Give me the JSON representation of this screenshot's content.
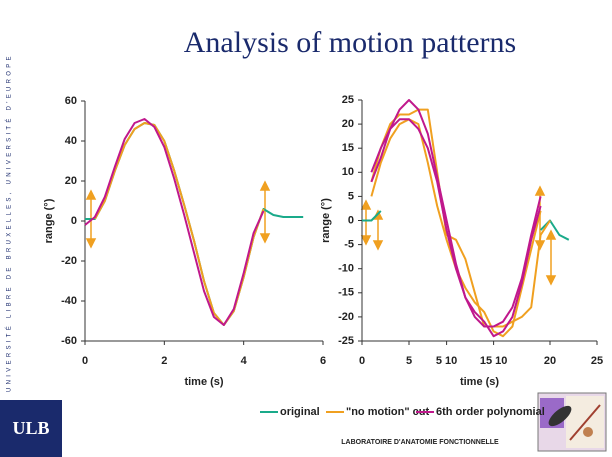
{
  "slide": {
    "title": "Analysis of motion patterns",
    "sidebar": "UNIVERSITÉ LIBRE DE BRUXELLES, UNIVERSITÉ D'EUROPE",
    "logo": "ULB",
    "lab": "LABORATOIRE D'ANATOMIE FONCTIONNELLE"
  },
  "chart_data": [
    {
      "type": "line",
      "xlabel": "time (s)",
      "ylabel": "range (°)",
      "xlim": [
        0,
        6
      ],
      "ylim": [
        -60,
        60
      ],
      "xticks": [
        0,
        2,
        4,
        6
      ],
      "yticks": [
        -60,
        -40,
        -20,
        0,
        20,
        40,
        60
      ],
      "x": [
        0,
        0.25,
        0.5,
        0.75,
        1,
        1.25,
        1.5,
        1.75,
        2,
        2.25,
        2.5,
        2.75,
        3,
        3.25,
        3.5,
        3.75,
        4,
        4.25,
        4.5,
        4.75,
        5,
        5.25,
        5.5
      ],
      "series": [
        {
          "name": "original",
          "color": "#1aaa8a",
          "values": [
            1,
            1,
            10,
            25,
            38,
            46,
            49,
            48,
            40,
            25,
            8,
            -10,
            -30,
            -46,
            -52,
            -45,
            -28,
            -8,
            6,
            3,
            2,
            2,
            2
          ]
        },
        {
          "name": "\"no motion\" cut",
          "color": "#f0a020",
          "values": [
            null,
            1,
            10,
            25,
            38,
            46,
            49,
            48,
            40,
            25,
            8,
            -10,
            -30,
            -46,
            -52,
            -45,
            -28,
            -8,
            6,
            null,
            null,
            null,
            null
          ]
        },
        {
          "name": "6th order polynomial",
          "color": "#c0188c",
          "values": [
            -2,
            2,
            12,
            27,
            41,
            49,
            51,
            47,
            37,
            21,
            3,
            -16,
            -35,
            -48,
            -52,
            -44,
            -26,
            -6,
            5,
            null,
            null,
            null,
            null
          ]
        }
      ]
    },
    {
      "type": "line",
      "xlabel": "time (s)",
      "ylabel": "range (°)",
      "xlim": [
        0,
        25
      ],
      "ylim": [
        -25,
        25
      ],
      "xticks": [
        0,
        {
          "value": 5,
          "label": "5"
        },
        {
          "value": 9,
          "label": "5 10"
        },
        {
          "value": 14,
          "label": "15 10"
        },
        20,
        25
      ],
      "yticks": [
        -25,
        -20,
        -15,
        -10,
        -5,
        0,
        5,
        10,
        15,
        20,
        25
      ],
      "x": [
        0,
        1,
        2,
        3,
        4,
        5,
        6,
        7,
        8,
        9,
        10,
        11,
        12,
        13,
        14,
        15,
        16,
        17,
        18,
        19,
        20,
        21,
        22
      ],
      "series": [
        {
          "color": "#1aaa8a",
          "values": [
            0,
            0,
            2,
            null,
            null,
            null,
            null,
            null,
            null,
            null,
            null,
            null,
            null,
            null,
            null,
            null,
            null,
            null,
            null,
            -2,
            0,
            -3,
            -4
          ]
        },
        {
          "color": "#f0a020",
          "values": [
            null,
            8,
            15,
            20,
            22,
            22,
            23,
            23,
            10,
            -3,
            -4,
            -8,
            -15,
            -22,
            -22,
            -22,
            -21,
            -20,
            -18,
            -3,
            0,
            null,
            null
          ]
        },
        {
          "color": "#f0a020",
          "values": [
            null,
            5,
            12,
            17,
            20,
            21,
            20,
            12,
            3,
            -4,
            -10,
            -14,
            -17,
            -19,
            -23,
            -24,
            -22,
            -14,
            -6,
            2,
            null,
            null,
            null
          ]
        },
        {
          "color": "#c0188c",
          "values": [
            null,
            8,
            13,
            19,
            23,
            25,
            23,
            18,
            9,
            0,
            -9,
            -16,
            -20,
            -22,
            -22,
            -21,
            -18,
            -12,
            -3,
            5,
            null,
            null,
            null
          ]
        },
        {
          "color": "#c0188c",
          "values": [
            null,
            10,
            15,
            19,
            21,
            21,
            19,
            15,
            8,
            -2,
            -10,
            -16,
            -19,
            -21,
            -24,
            -23,
            -20,
            -13,
            -4,
            3,
            null,
            null,
            null
          ]
        }
      ]
    }
  ]
}
